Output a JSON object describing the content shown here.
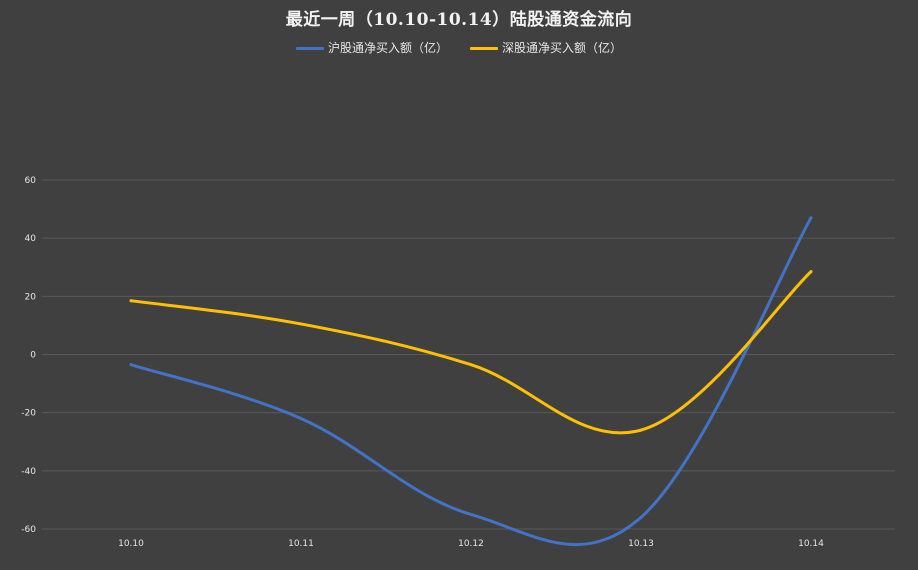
{
  "chart_data": {
    "type": "line",
    "title": "最近一周（10.10-10.14）陆股通资金流向",
    "categories": [
      "10.10",
      "10.11",
      "10.12",
      "10.13",
      "10.14"
    ],
    "series": [
      {
        "name": "沪股通净买入额（亿）",
        "values": [
          -3.5,
          -22,
          -55,
          -56,
          47
        ],
        "color": "#4472c4"
      },
      {
        "name": "深股通净买入额（亿）",
        "values": [
          18.5,
          10.5,
          -3.5,
          -26,
          28.5
        ],
        "color": "#ffc000"
      }
    ],
    "y_ticks": [
      "60",
      "40",
      "20",
      "0",
      "-20",
      "-40",
      "-60"
    ],
    "ylim": [
      -60,
      60
    ],
    "grid": true,
    "legend_position": "top-center",
    "smooth": true,
    "background_color": "#404040",
    "grid_color": "#595959"
  }
}
